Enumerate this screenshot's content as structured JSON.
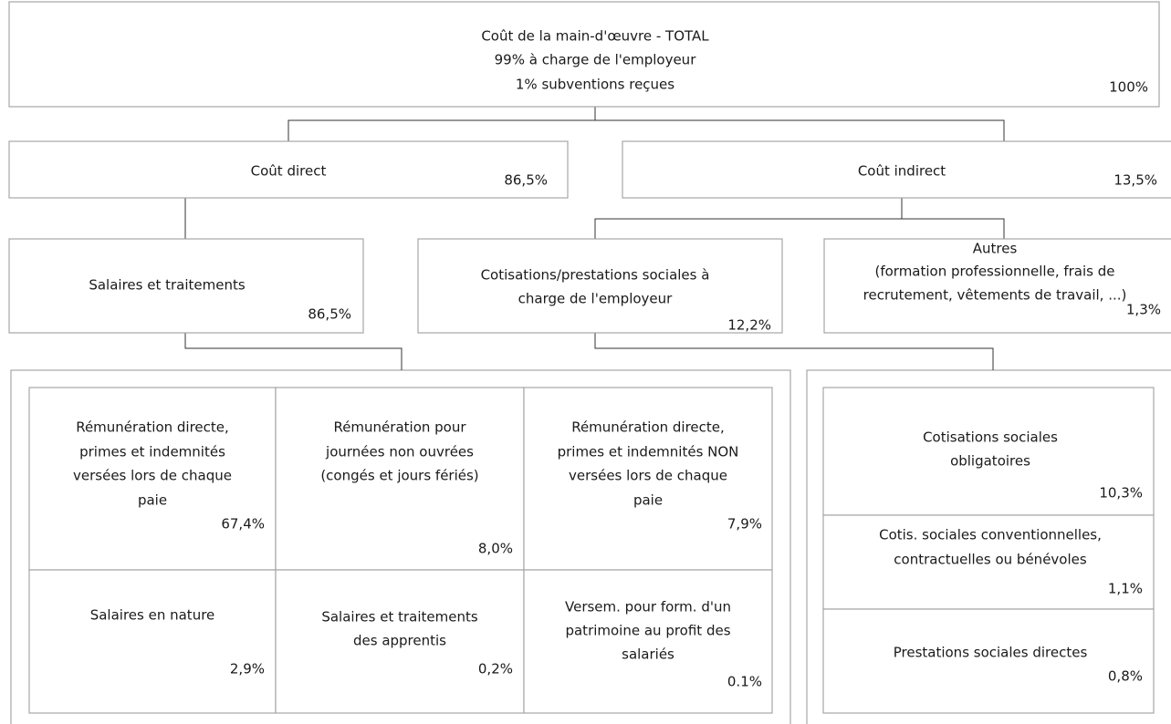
{
  "nodes": [
    {
      "lines": [
        "Coût de la main-d'œuvre - TOTAL",
        "99% à charge de l'employeur",
        "1% subventions reçues"
      ],
      "value": "100%"
    },
    {
      "lines": [
        "Coût direct"
      ],
      "value": "86,5%"
    },
    {
      "lines": [
        "Coût indirect"
      ],
      "value": "13,5%"
    },
    {
      "lines": [
        "Salaires et traitements"
      ],
      "value": "86,5%"
    },
    {
      "lines": [
        "Cotisations/prestations sociales à",
        "charge de l'employeur"
      ],
      "value": "12,2%"
    },
    {
      "lines": [
        "Autres",
        "(formation professionnelle, frais de",
        "recrutement, vêtements de travail, ...)"
      ],
      "value": "1,3%"
    },
    {
      "lines": [
        "Rémunération directe,",
        "primes et indemnités",
        "versées lors de chaque",
        "paie"
      ],
      "value": "67,4%"
    },
    {
      "lines": [
        "Rémunération pour",
        "journées non ouvrées",
        "(congés et jours fériés)"
      ],
      "value": "8,0%"
    },
    {
      "lines": [
        "Rémunération directe,",
        "primes et indemnités NON",
        "versées lors de chaque",
        "paie"
      ],
      "value": "7,9%"
    },
    {
      "lines": [
        "Salaires en nature"
      ],
      "value": "2,9%"
    },
    {
      "lines": [
        "Salaires et traitements",
        "des apprentis"
      ],
      "value": "0,2%"
    },
    {
      "lines": [
        "Versem. pour form. d'un",
        "patrimoine au profit des",
        "salariés"
      ],
      "value": "0.1%"
    },
    {
      "lines": [
        "Cotisations sociales",
        "obligatoires"
      ],
      "value": "10,3%"
    },
    {
      "lines": [
        "Cotis. sociales conventionnelles,",
        "contractuelles ou bénévoles"
      ],
      "value": "1,1%"
    },
    {
      "lines": [
        "Prestations sociales directes"
      ],
      "value": "0,8%"
    }
  ]
}
